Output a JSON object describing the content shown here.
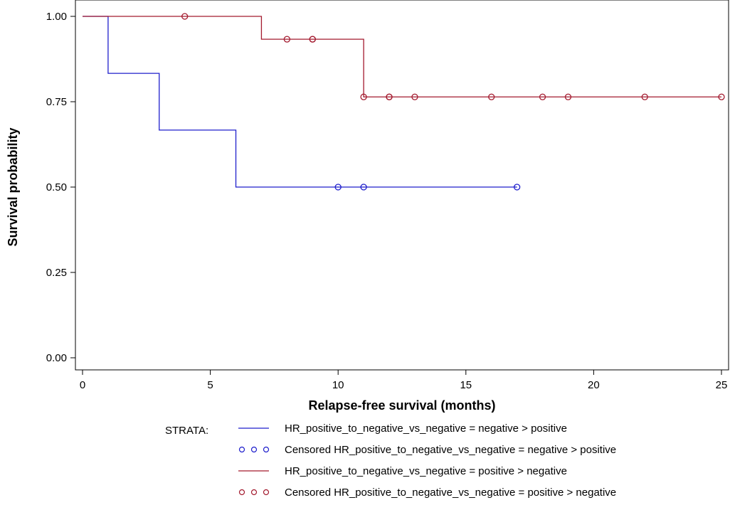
{
  "chart_data": {
    "type": "line",
    "title": "",
    "xlabel": "Relapse-free survival (months)",
    "ylabel": "Survival probability",
    "xlim": [
      0,
      25
    ],
    "ylim": [
      0,
      1
    ],
    "xticks": [
      "0",
      "5",
      "10",
      "15",
      "20",
      "25"
    ],
    "xtick_values": [
      0,
      5,
      10,
      15,
      20,
      25
    ],
    "yticks": [
      "0.00",
      "0.25",
      "0.50",
      "0.75",
      "1.00"
    ],
    "ytick_values": [
      0,
      0.25,
      0.5,
      0.75,
      1.0
    ],
    "grid": false,
    "legend": {
      "title": "STRATA:",
      "placement": "bottom",
      "entries": [
        {
          "label": "HR_positive_to_negative_vs_negative = negative > positive",
          "kind": "line",
          "color": "#1f1fcc"
        },
        {
          "label": "Censored HR_positive_to_negative_vs_negative = negative > positive",
          "kind": "marker",
          "color": "#1f1fcc"
        },
        {
          "label": "HR_positive_to_negative_vs_negative = positive > negative",
          "kind": "line",
          "color": "#a31a2e"
        },
        {
          "label": "Censored HR_positive_to_negative_vs_negative = positive > negative",
          "kind": "marker",
          "color": "#a31a2e"
        }
      ]
    },
    "series": [
      {
        "color": "#1f1fcc",
        "steps": [
          [
            0,
            1.0
          ],
          [
            1,
            0.833
          ],
          [
            3,
            0.667
          ],
          [
            6,
            0.5
          ]
        ],
        "end": 17,
        "censored": [
          [
            10,
            0.5
          ],
          [
            11,
            0.5
          ],
          [
            17,
            0.5
          ]
        ]
      },
      {
        "color": "#a31a2e",
        "steps": [
          [
            0,
            1.0
          ],
          [
            7,
            0.933
          ],
          [
            11,
            0.764
          ]
        ],
        "end": 25,
        "censored": [
          [
            4,
            1.0
          ],
          [
            8,
            0.933
          ],
          [
            9,
            0.933
          ],
          [
            9,
            0.933
          ],
          [
            11,
            0.764
          ],
          [
            12,
            0.764
          ],
          [
            12,
            0.764
          ],
          [
            13,
            0.764
          ],
          [
            16,
            0.764
          ],
          [
            18,
            0.764
          ],
          [
            19,
            0.764
          ],
          [
            22,
            0.764
          ],
          [
            25,
            0.764
          ]
        ]
      }
    ]
  }
}
